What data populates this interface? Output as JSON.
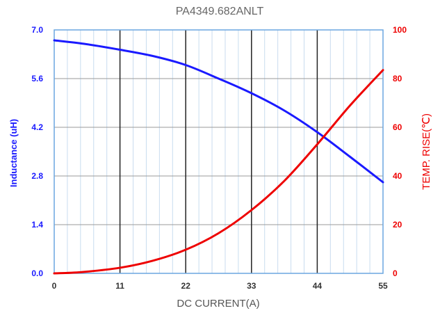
{
  "chart_data": {
    "type": "line",
    "title": "PA4349.682ANLT",
    "xlabel": "DC CURRENT(A)",
    "ylabel_left": "Inductance  (uH)",
    "ylabel_right": "TEMP. RISE(℃)",
    "xlim": [
      0,
      55
    ],
    "ylim_left": [
      0,
      7.0
    ],
    "ylim_right": [
      0,
      100
    ],
    "x_ticks": [
      "0",
      "11",
      "22",
      "33",
      "44",
      "55"
    ],
    "y_left_ticks": [
      "0.0",
      "1.4",
      "2.8",
      "4.2",
      "5.6",
      "7.0"
    ],
    "y_right_ticks": [
      "0",
      "20",
      "40",
      "60",
      "80",
      "100"
    ],
    "grid": true,
    "colors": {
      "inductance": "#1a1aff",
      "temp_rise": "#ee0000",
      "minor_grid": "#c8dcef",
      "major_grid": "#999999",
      "bold_grid": "#222222",
      "frame": "#6aa6e0"
    },
    "series": [
      {
        "axis": "left",
        "x": [
          0,
          5,
          11,
          16.5,
          22,
          27.5,
          33,
          38.5,
          44,
          49.5,
          55
        ],
        "values": [
          6.7,
          6.6,
          6.43,
          6.25,
          5.99,
          5.6,
          5.18,
          4.68,
          4.06,
          3.35,
          2.62
        ]
      },
      {
        "axis": "right",
        "x": [
          0,
          4.5,
          11,
          16.5,
          22,
          27.5,
          33,
          38.5,
          44,
          49.5,
          55
        ],
        "values": [
          0,
          0.5,
          2.3,
          5.2,
          9.7,
          16.5,
          26,
          38,
          53,
          69,
          83.5
        ]
      }
    ]
  }
}
